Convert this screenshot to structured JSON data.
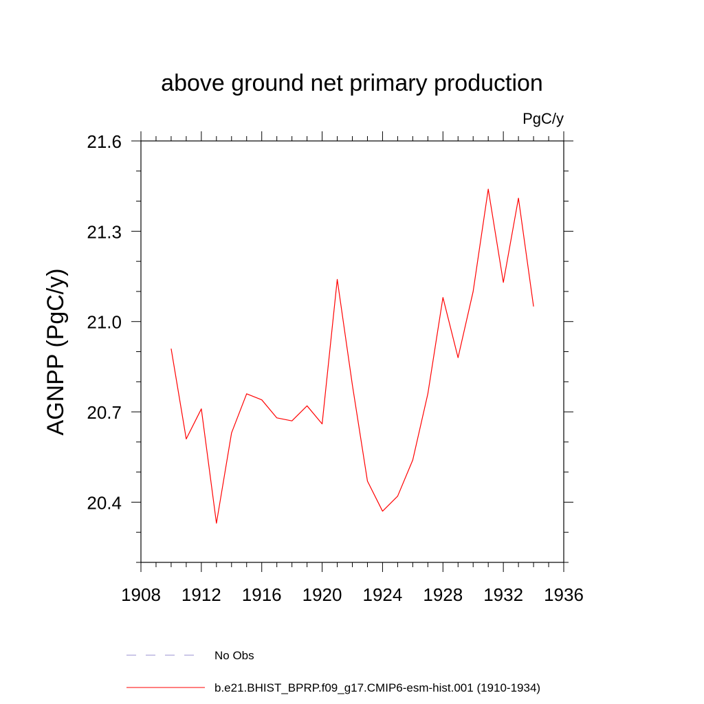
{
  "chart_data": {
    "type": "line",
    "title": "above ground net primary production",
    "units": "PgC/y",
    "ylabel": "AGNPP  (PgC/y)",
    "xlabel": "",
    "xlim": [
      1908,
      1936
    ],
    "ylim": [
      20.2,
      21.6
    ],
    "xticks": [
      1908,
      1912,
      1916,
      1920,
      1924,
      1928,
      1932,
      1936
    ],
    "xtick_labels": [
      "1908",
      "1912",
      "1916",
      "1920",
      "1924",
      "1928",
      "1932",
      "1936"
    ],
    "yticks": [
      20.4,
      20.7,
      21.0,
      21.3,
      21.6
    ],
    "ytick_labels": [
      "20.4",
      "20.7",
      "21.0",
      "21.3",
      "21.6"
    ],
    "x_minor_step": 1,
    "y_minor_step": 0.1,
    "series": [
      {
        "name": "b.e21.BHIST_BPRP.f09_g17.CMIP6-esm-hist.001 (1910-1934)",
        "color": "#ff0000",
        "style": "solid",
        "x": [
          1910,
          1911,
          1912,
          1913,
          1914,
          1915,
          1916,
          1917,
          1918,
          1919,
          1920,
          1921,
          1922,
          1923,
          1924,
          1925,
          1926,
          1927,
          1928,
          1929,
          1930,
          1931,
          1932,
          1933,
          1934
        ],
        "y": [
          20.91,
          20.61,
          20.71,
          20.33,
          20.63,
          20.76,
          20.74,
          20.68,
          20.67,
          20.72,
          20.66,
          21.14,
          20.79,
          20.47,
          20.37,
          20.42,
          20.54,
          20.76,
          21.08,
          20.88,
          21.1,
          21.44,
          21.13,
          21.41,
          21.05
        ]
      }
    ],
    "legend": [
      {
        "label": "No Obs",
        "color": "#9a8fd0",
        "style": "dashed"
      },
      {
        "label": "b.e21.BHIST_BPRP.f09_g17.CMIP6-esm-hist.001 (1910-1934)",
        "color": "#ff0000",
        "style": "solid"
      }
    ],
    "legend_position": "bottom-center"
  }
}
